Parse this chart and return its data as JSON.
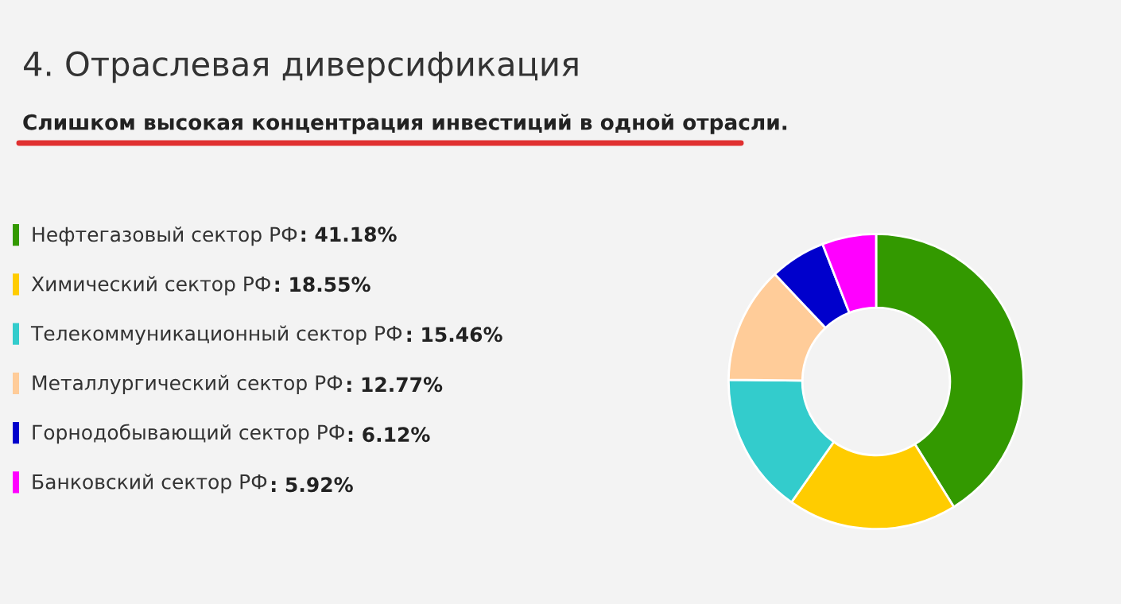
{
  "chart_data": {
    "type": "donut",
    "title": "4. Отраслевая диверсификация",
    "subtitle": "Слишком высокая концентрация инвестиций в одной отрасли.",
    "categories": [
      "Нефтегазовый сектор РФ",
      "Химический сектор РФ",
      "Телекоммуникационный сектор РФ",
      "Металлургический сектор РФ",
      "Горнодобывающий сектор РФ",
      "Банковский сектор РФ"
    ],
    "values": [
      41.18,
      18.55,
      15.46,
      12.77,
      6.12,
      5.92
    ],
    "value_labels": [
      ": 41.18%",
      ": 18.55%",
      ": 15.46%",
      ": 12.77%",
      ": 6.12%",
      ": 5.92%"
    ],
    "colors": [
      "#339900",
      "#ffcc00",
      "#33cccc",
      "#ffcc99",
      "#0000cc",
      "#ff00ff"
    ],
    "legend": "left"
  }
}
